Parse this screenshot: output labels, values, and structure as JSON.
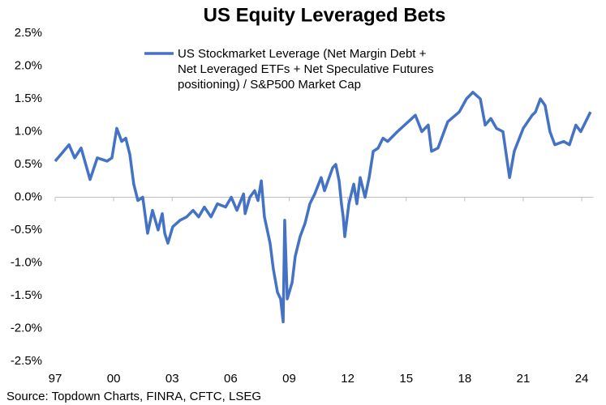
{
  "chart_data": {
    "type": "line",
    "title": "US Equity Leveraged Bets",
    "source": "Source: Topdown Charts, FINRA, CFTC, LSEG",
    "xlim": [
      1997,
      2024.6
    ],
    "xticks": [
      {
        "value": 1997,
        "label": "97"
      },
      {
        "value": 2000,
        "label": "00"
      },
      {
        "value": 2003,
        "label": "03"
      },
      {
        "value": 2006,
        "label": "06"
      },
      {
        "value": 2009,
        "label": "09"
      },
      {
        "value": 2012,
        "label": "12"
      },
      {
        "value": 2015,
        "label": "15"
      },
      {
        "value": 2018,
        "label": "18"
      },
      {
        "value": 2021,
        "label": "21"
      },
      {
        "value": 2024,
        "label": "24"
      }
    ],
    "ylim": [
      -2.5,
      2.5
    ],
    "yticks": [
      {
        "value": 2.5,
        "label": "2.5%"
      },
      {
        "value": 2.0,
        "label": "2.0%"
      },
      {
        "value": 1.5,
        "label": "1.5%"
      },
      {
        "value": 1.0,
        "label": "1.0%"
      },
      {
        "value": 0.5,
        "label": "0.5%"
      },
      {
        "value": 0,
        "label": "0.0%"
      },
      {
        "value": -0.5,
        "label": "-0.5%"
      },
      {
        "value": -1.0,
        "label": "-1.0%"
      },
      {
        "value": -1.5,
        "label": "-1.5%"
      },
      {
        "value": -2.0,
        "label": "-2.0%"
      },
      {
        "value": -2.5,
        "label": "-2.5%"
      }
    ],
    "legend": "top",
    "series": [
      {
        "name": "US Stockmarket Leverage (Net Margin Debt + Net Leveraged ETFs + Net Speculative Futures positioning) / S&P500 Market Cap",
        "color": "#4472c4",
        "x": [
          1997.0,
          1997.71,
          1998.0,
          1998.33,
          1998.79,
          1999.16,
          1999.66,
          1999.91,
          2000.16,
          2000.41,
          2000.62,
          2000.83,
          2001.03,
          2001.24,
          2001.49,
          2001.74,
          2001.99,
          2002.28,
          2002.49,
          2002.62,
          2002.78,
          2003.03,
          2003.41,
          2003.74,
          2004.07,
          2004.36,
          2004.65,
          2004.99,
          2005.32,
          2005.74,
          2006.03,
          2006.32,
          2006.66,
          2006.74,
          2006.98,
          2007.23,
          2007.4,
          2007.57,
          2007.73,
          2008.02,
          2008.19,
          2008.4,
          2008.56,
          2008.69,
          2008.77,
          2008.9,
          2009.15,
          2009.31,
          2009.56,
          2009.81,
          2010.06,
          2010.31,
          2010.64,
          2010.81,
          2011.23,
          2011.39,
          2011.56,
          2011.68,
          2011.77,
          2011.85,
          2012.06,
          2012.31,
          2012.47,
          2012.64,
          2012.89,
          2013.1,
          2013.31,
          2013.56,
          2013.81,
          2014.05,
          2014.55,
          2015.47,
          2015.8,
          2016.13,
          2016.3,
          2016.63,
          2017.13,
          2017.72,
          2018.09,
          2018.42,
          2018.8,
          2019.05,
          2019.34,
          2019.63,
          2019.96,
          2020.3,
          2020.54,
          2021.0,
          2021.46,
          2021.63,
          2021.88,
          2022.12,
          2022.37,
          2022.62,
          2023.08,
          2023.37,
          2023.7,
          2023.95,
          2024.45
        ],
        "values": [
          0.55,
          0.8,
          0.6,
          0.75,
          0.27,
          0.6,
          0.55,
          0.6,
          1.05,
          0.85,
          0.9,
          0.65,
          0.2,
          -0.05,
          0.0,
          -0.55,
          -0.2,
          -0.5,
          -0.25,
          -0.55,
          -0.7,
          -0.45,
          -0.35,
          -0.3,
          -0.2,
          -0.3,
          -0.15,
          -0.3,
          -0.1,
          -0.15,
          0.0,
          -0.2,
          0.05,
          -0.25,
          0.0,
          0.1,
          -0.05,
          0.25,
          -0.3,
          -0.7,
          -1.1,
          -1.45,
          -1.55,
          -1.9,
          -0.35,
          -1.55,
          -1.3,
          -0.9,
          -0.6,
          -0.4,
          -0.1,
          0.05,
          0.3,
          0.1,
          0.45,
          0.5,
          0.25,
          -0.1,
          -0.3,
          -0.6,
          -0.1,
          0.2,
          -0.1,
          0.3,
          0.0,
          0.3,
          0.7,
          0.75,
          0.9,
          0.85,
          1.0,
          1.25,
          1.0,
          1.1,
          0.7,
          0.75,
          1.15,
          1.3,
          1.5,
          1.6,
          1.5,
          1.1,
          1.2,
          1.05,
          1.0,
          0.3,
          0.7,
          1.05,
          1.25,
          1.3,
          1.5,
          1.4,
          1.0,
          0.8,
          0.85,
          0.8,
          1.1,
          1.0,
          1.3
        ]
      }
    ]
  }
}
